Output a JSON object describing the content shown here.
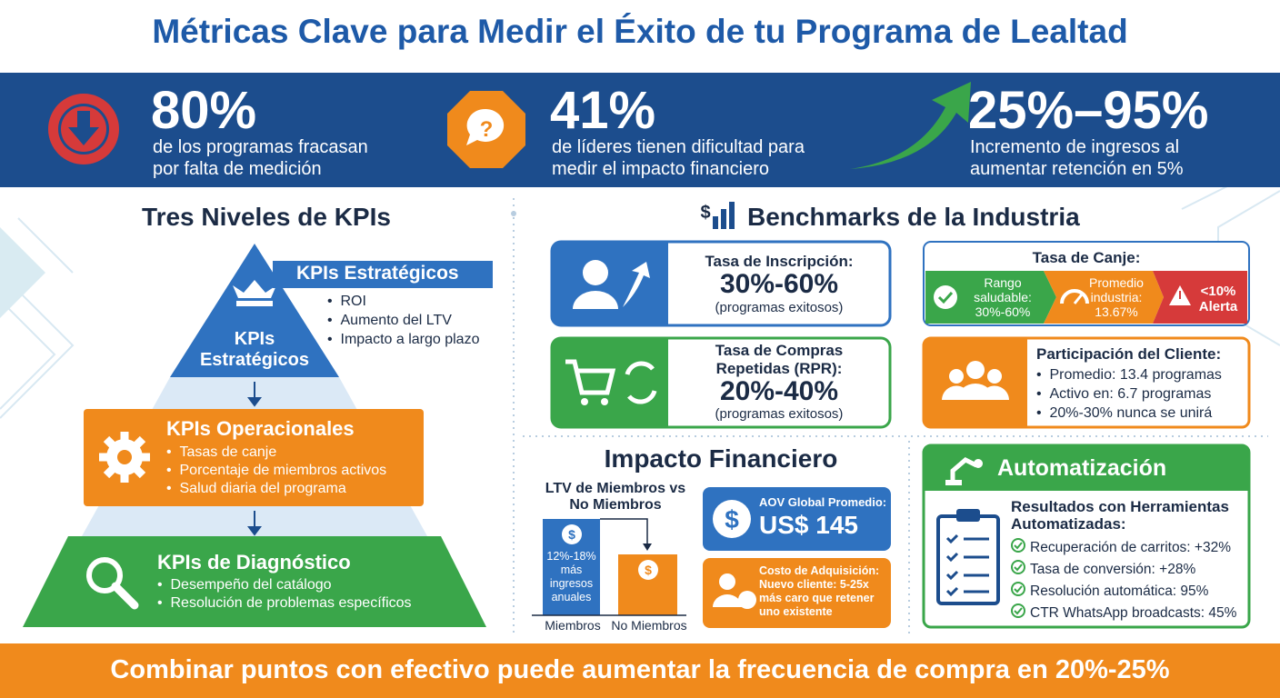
{
  "header": {
    "title": "Métricas Clave para Medir el Éxito de tu Programa de Lealtad"
  },
  "stats": [
    {
      "value": "80%",
      "lines": [
        "de los programas fracasan",
        "por falta de medición"
      ]
    },
    {
      "value": "41%",
      "lines": [
        "de líderes tienen dificultad para",
        "medir el impacto financiero"
      ]
    },
    {
      "value": "25%–95%",
      "lines": [
        "Incremento de ingresos al",
        "aumentar retención en 5%"
      ]
    }
  ],
  "kpis": {
    "title": "Tres Niveles de KPIs",
    "strategic": {
      "label": "KPIs Estratégicos",
      "pyramid_lines": [
        "KPIs",
        "Estratégicos"
      ],
      "items": [
        "ROI",
        "Aumento del LTV",
        "Impacto a largo plazo"
      ]
    },
    "operational": {
      "label": "KPIs Operacionales",
      "items": [
        "Tasas de canje",
        "Porcentaje de miembros activos",
        "Salud diaria del programa"
      ]
    },
    "diagnostic": {
      "label": "KPIs de Diagnóstico",
      "items": [
        "Desempeño del catálogo",
        "Resolución de problemas específicos"
      ]
    }
  },
  "benchmarks": {
    "title": "Benchmarks de la Industria",
    "enrollment": {
      "label": "Tasa de Inscripción:",
      "value": "30%-60%",
      "note": "(programas exitosos)"
    },
    "repeat": {
      "label_lines": [
        "Tasa de Compras",
        "Repetidas (RPR):"
      ],
      "value": "20%-40%",
      "note": "(programas exitosos)"
    },
    "redemption": {
      "title": "Tasa de Canje:",
      "segments": [
        {
          "lines": [
            "Rango",
            "saludable:",
            "30%-60%"
          ]
        },
        {
          "lines": [
            "Promedio",
            "industria:",
            "13.67%"
          ]
        },
        {
          "lines": [
            "<10%",
            "Alerta"
          ]
        }
      ]
    },
    "participation": {
      "title": "Participación del Cliente:",
      "items": [
        "Promedio: 13.4 programas",
        "Activo en: 6.7 programas",
        "20%-30% nunca se unirá"
      ]
    }
  },
  "financial": {
    "title": "Impacto Financiero",
    "ltv": {
      "title_lines": [
        "LTV de Miembros vs",
        "No Miembros"
      ],
      "bar_note_lines": [
        "12%-18%",
        "más",
        "ingresos",
        "anuales"
      ],
      "categories": [
        "Miembros",
        "No Miembros"
      ]
    },
    "aov": {
      "label": "AOV Global Promedio:",
      "value": "US$ 145"
    },
    "cac": {
      "lines": [
        "Costo de Adquisición:",
        "Nuevo cliente: 5-25x",
        "más caro que retener",
        "uno existente"
      ]
    }
  },
  "automation": {
    "title": "Automatización",
    "subtitle_lines": [
      "Resultados con Herramientas",
      "Automatizadas:"
    ],
    "items": [
      "Recuperación de carritos: +32%",
      "Tasa de conversión: +28%",
      "Resolución automática: 95%",
      "CTR WhatsApp broadcasts: 45%"
    ]
  },
  "footer": {
    "text": "Combinar puntos con efectivo puede aumentar la frecuencia de compra en 20%-25%"
  }
}
